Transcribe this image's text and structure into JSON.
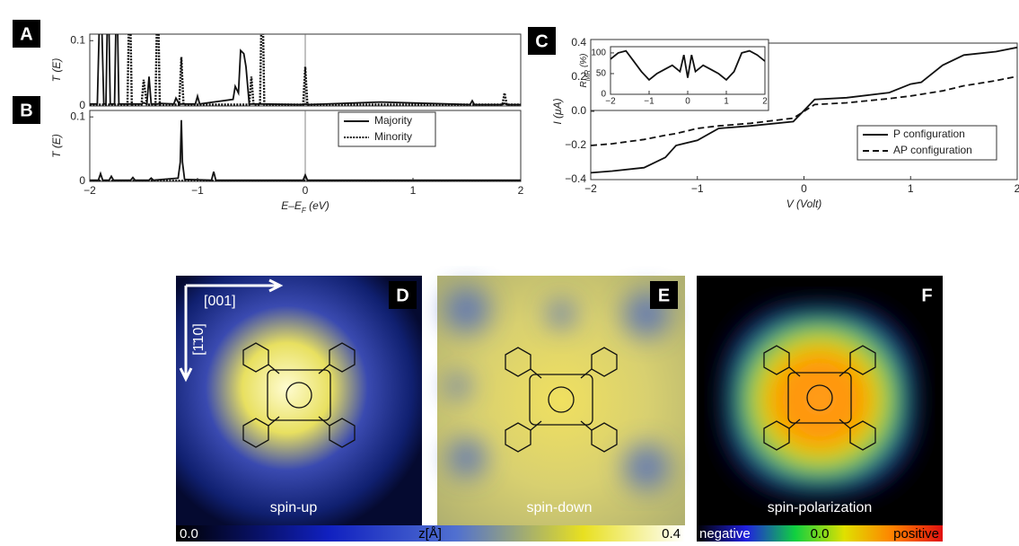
{
  "panels": {
    "labels": [
      "A",
      "B",
      "C",
      "D",
      "E",
      "F"
    ],
    "captions": [
      "spin-up",
      "spin-down",
      "spin-polarization"
    ],
    "directions": [
      "[001]",
      "[1̄10]"
    ]
  },
  "colorbars": [
    {
      "labels": [
        "0.0",
        "z[Å]",
        "0.4"
      ]
    },
    {
      "labels": [
        "negative",
        "0.0",
        "positive"
      ]
    }
  ],
  "chart_data": [
    {
      "type": "line",
      "ylabel": "T (E)",
      "xlim": [
        -2,
        2
      ],
      "ylim": [
        0,
        0.11
      ],
      "yticks": [
        0,
        0.1
      ],
      "vline": 0,
      "x": [
        -2,
        -1.93,
        -1.9,
        -1.87,
        -1.85,
        -1.83,
        -1.81,
        -1.77,
        -1.75,
        -1.73,
        -1.65,
        -1.63,
        -1.61,
        -1.52,
        -1.5,
        -1.47,
        -1.45,
        -1.43,
        -1.39,
        -1.37,
        -1.35,
        -1.22,
        -1.2,
        -1.17,
        -1.15,
        -1.13,
        -1.02,
        -1.0,
        -0.98,
        -0.67,
        -0.65,
        -0.62,
        -0.6,
        -0.57,
        -0.55,
        -0.52,
        -0.5,
        -0.48,
        -0.42,
        -0.4,
        -0.38,
        -0.02,
        0,
        0.02,
        0.7,
        1.53,
        1.55,
        1.57,
        1.83,
        1.85,
        1.87,
        2
      ],
      "series": [
        {
          "name": "Majority",
          "color": "#111",
          "dash": "solid",
          "values": [
            0.003,
            0.003,
            0.2,
            0.003,
            0.003,
            0.2,
            0.003,
            0.003,
            0.2,
            0.003,
            0.003,
            0.003,
            0.003,
            0.003,
            0.005,
            0.003,
            0.045,
            0.003,
            0.003,
            0.003,
            0.004,
            0.003,
            0.012,
            0.003,
            0.003,
            0.003,
            0.003,
            0.015,
            0.003,
            0.01,
            0.03,
            0.02,
            0.085,
            0.08,
            0.06,
            0.003,
            0.003,
            0.003,
            0.003,
            0.003,
            0.003,
            0.002,
            0.003,
            0.002,
            0.006,
            0.002,
            0.008,
            0.002,
            0.002,
            0.004,
            0.002,
            0.002
          ]
        },
        {
          "name": "Minority",
          "color": "#111",
          "dash": "dotted",
          "values": [
            0.002,
            0.002,
            0.002,
            0.002,
            0.002,
            0.002,
            0.002,
            0.002,
            0.002,
            0.002,
            0.002,
            0.2,
            0.002,
            0.002,
            0.04,
            0.002,
            0.002,
            0.002,
            0.002,
            0.2,
            0.002,
            0.002,
            0.002,
            0.002,
            0.075,
            0.002,
            0.002,
            0.002,
            0.002,
            0.002,
            0.002,
            0.002,
            0.002,
            0.002,
            0.002,
            0.002,
            0.045,
            0.002,
            0.002,
            0.2,
            0.002,
            0.002,
            0.06,
            0.002,
            0.002,
            0.002,
            0.002,
            0.002,
            0.002,
            0.02,
            0.002,
            0.002
          ]
        }
      ]
    },
    {
      "type": "line",
      "ylabel": "T (E)",
      "xlabel": [
        "E–E",
        "F",
        " (eV)"
      ],
      "xlim": [
        -2,
        2
      ],
      "ylim": [
        0,
        0.11
      ],
      "yticks": [
        0,
        0.1
      ],
      "vline": 0,
      "legend": "top-right",
      "xticks": [
        {
          "value": -2,
          "label": "−2"
        },
        {
          "value": -1,
          "label": "−1"
        },
        0,
        1,
        2
      ],
      "x": [
        -2,
        -1.92,
        -1.9,
        -1.88,
        -1.82,
        -1.8,
        -1.78,
        -1.62,
        -1.6,
        -1.58,
        -1.45,
        -1.43,
        -1.41,
        -1.18,
        -1.16,
        -1.15,
        -1.14,
        -1.12,
        -0.87,
        -0.85,
        -0.83,
        -0.02,
        0,
        0.02,
        2
      ],
      "series": [
        {
          "name": "Majority",
          "color": "#111",
          "dash": "solid",
          "values": [
            0.002,
            0.002,
            0.012,
            0.002,
            0.002,
            0.008,
            0.002,
            0.002,
            0.006,
            0.002,
            0.002,
            0.005,
            0.002,
            0.005,
            0.03,
            0.095,
            0.03,
            0.003,
            0.002,
            0.015,
            0.002,
            0.002,
            0.01,
            0.002,
            0.002
          ]
        },
        {
          "name": "Minority",
          "color": "#111",
          "dash": "dotted",
          "values": [
            0.001,
            0.001,
            0.001,
            0.001,
            0.001,
            0.001,
            0.001,
            0.001,
            0.001,
            0.001,
            0.001,
            0.001,
            0.001,
            0.001,
            0.001,
            0.001,
            0.001,
            0.001,
            0.001,
            0.001,
            0.001,
            0.001,
            0.001,
            0.001,
            0.001
          ]
        }
      ]
    },
    {
      "type": "line",
      "ylabel": "I (μA)",
      "xlabel": "V (Volt)",
      "xlim": [
        -2,
        2
      ],
      "ylim": [
        -0.4,
        0.4
      ],
      "legend": "bottom-right",
      "xticks": [
        {
          "value": -2,
          "label": "−2"
        },
        {
          "value": -1,
          "label": "−1"
        },
        0,
        1,
        2
      ],
      "yticks": [
        {
          "value": -0.4,
          "label": "−0.4"
        },
        {
          "value": -0.2,
          "label": "−0.2"
        },
        {
          "value": 0,
          "label": "0.0"
        },
        0.2,
        0.4
      ],
      "x": [
        -2,
        -1.8,
        -1.5,
        -1.3,
        -1.2,
        -1,
        -0.8,
        -0.5,
        -0.1,
        0.1,
        0.4,
        0.8,
        1,
        1.1,
        1.3,
        1.5,
        1.8,
        2
      ],
      "series": [
        {
          "name": "P configuration",
          "color": "#111",
          "dash": "solid",
          "values": [
            -0.36,
            -0.35,
            -0.33,
            -0.27,
            -0.2,
            -0.17,
            -0.1,
            -0.085,
            -0.06,
            0.07,
            0.08,
            0.11,
            0.16,
            0.17,
            0.27,
            0.33,
            0.35,
            0.375
          ]
        },
        {
          "name": "AP configuration",
          "color": "#111",
          "dash": "dashed",
          "values": [
            -0.2,
            -0.19,
            -0.165,
            -0.14,
            -0.13,
            -0.1,
            -0.085,
            -0.07,
            -0.04,
            0.04,
            0.05,
            0.075,
            0.09,
            0.1,
            0.12,
            0.15,
            0.18,
            0.205
          ]
        }
      ]
    },
    {
      "type": "line",
      "ylabel": [
        "R",
        "MR",
        " (%)"
      ],
      "xlim": [
        -2,
        2
      ],
      "ylim": [
        0,
        115
      ],
      "xticks": [
        {
          "value": -2,
          "label": "−2"
        },
        {
          "value": -1,
          "label": "−1"
        },
        0,
        1,
        2
      ],
      "yticks": [
        0,
        50,
        100
      ],
      "x": [
        -2,
        -1.8,
        -1.6,
        -1.4,
        -1.2,
        -1,
        -0.8,
        -0.6,
        -0.4,
        -0.2,
        -0.1,
        0,
        0.1,
        0.2,
        0.4,
        0.6,
        0.8,
        1,
        1.2,
        1.4,
        1.6,
        1.8,
        2
      ],
      "series": [
        {
          "name": "RMR",
          "color": "#111",
          "dash": "solid",
          "values": [
            85,
            100,
            105,
            80,
            55,
            35,
            50,
            60,
            70,
            55,
            95,
            40,
            95,
            55,
            70,
            60,
            50,
            35,
            55,
            100,
            105,
            95,
            80
          ]
        }
      ]
    }
  ]
}
